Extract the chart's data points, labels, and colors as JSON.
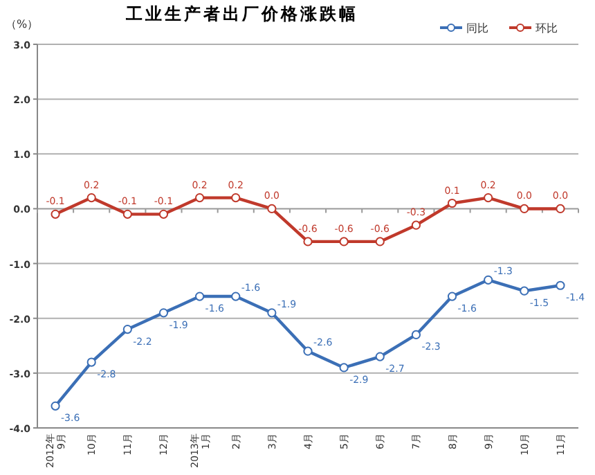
{
  "chart_data": {
    "type": "line",
    "title": "工业生产者出厂价格涨跌幅",
    "ylabel": "（%）",
    "categories": [
      "2012年\n9月",
      "10月",
      "11月",
      "12月",
      "2013年\n1月",
      "2月",
      "3月",
      "4月",
      "5月",
      "6月",
      "7月",
      "8月",
      "9月",
      "10月",
      "11月"
    ],
    "series": [
      {
        "name": "同比",
        "color": "#3b6fb6",
        "values": [
          -3.6,
          -2.8,
          -2.2,
          -1.9,
          -1.6,
          -1.6,
          -1.9,
          -2.6,
          -2.9,
          -2.7,
          -2.3,
          -1.6,
          -1.3,
          -1.5,
          -1.4
        ],
        "value_labels": [
          "-3.6",
          "-2.8",
          "-2.2",
          "-1.9",
          "-1.6",
          "-1.6",
          "-1.9",
          "-2.6",
          "-2.9",
          "-2.7",
          "-2.3",
          "-1.6",
          "-1.3",
          "-1.5",
          "-1.4"
        ]
      },
      {
        "name": "环比",
        "color": "#c0392b",
        "values": [
          -0.1,
          0.2,
          -0.1,
          -0.1,
          0.2,
          0.2,
          0.0,
          -0.6,
          -0.6,
          -0.6,
          -0.3,
          0.1,
          0.2,
          0.0,
          0.0
        ],
        "value_labels": [
          "-0.1",
          "0.2",
          "-0.1",
          "-0.1",
          "0.2",
          "0.2",
          "0.0",
          "-0.6",
          "-0.6",
          "-0.6",
          "-0.3",
          "0.1",
          "0.2",
          "0.0",
          "0.0"
        ]
      }
    ],
    "ylim": [
      -4,
      3
    ],
    "yticks": [
      {
        "value": 3,
        "label": "3.0"
      },
      {
        "value": 2,
        "label": "2.0"
      },
      {
        "value": 1,
        "label": "1.0"
      },
      {
        "value": 0,
        "label": "0.0"
      },
      {
        "value": -1,
        "label": "-1.0"
      },
      {
        "value": -2,
        "label": "-2.0"
      },
      {
        "value": -3,
        "label": "-3.0"
      },
      {
        "value": -4,
        "label": "-4.0"
      }
    ],
    "grid": "y",
    "legend": "top right",
    "marker": "circle",
    "line_style": "solid"
  }
}
